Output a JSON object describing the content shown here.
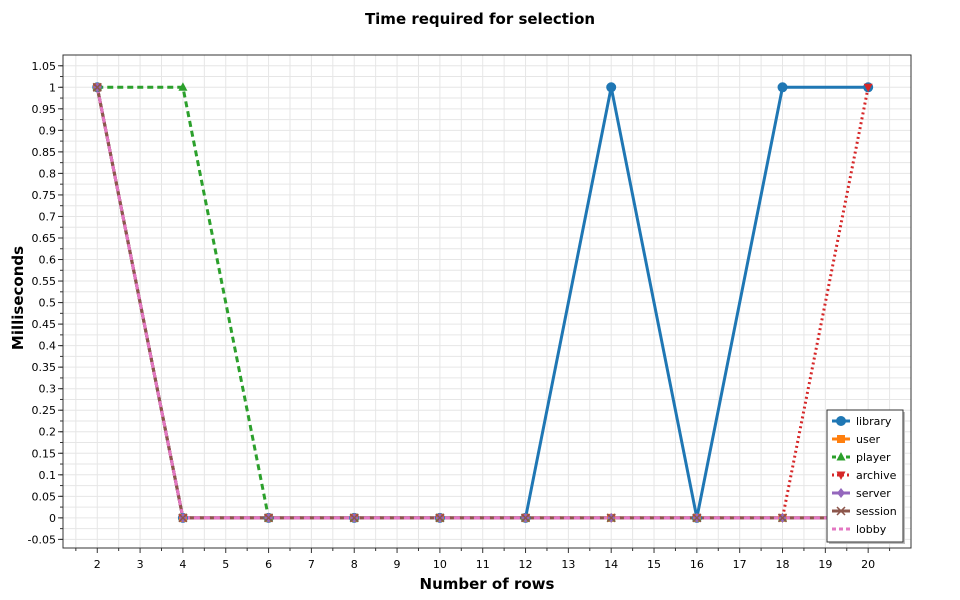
{
  "chart_data": {
    "type": "line",
    "title": "Time required for selection",
    "xlabel": "Number of rows",
    "ylabel": "Milliseconds",
    "xlim": [
      1.2,
      21
    ],
    "ylim": [
      -0.07,
      1.075
    ],
    "x_ticks": [
      2,
      3,
      4,
      5,
      6,
      7,
      8,
      9,
      10,
      11,
      12,
      13,
      14,
      15,
      16,
      17,
      18,
      19,
      20
    ],
    "y_ticks": [
      -0.05,
      0,
      0.05,
      0.1,
      0.15,
      0.2,
      0.25,
      0.3,
      0.35,
      0.4,
      0.45,
      0.5,
      0.55,
      0.6,
      0.65,
      0.7,
      0.75,
      0.8,
      0.85,
      0.9,
      0.95,
      1,
      1.05
    ],
    "grid": true,
    "legend_position": "bottom-right",
    "x": [
      2,
      4,
      6,
      8,
      10,
      12,
      14,
      16,
      18,
      20
    ],
    "series": [
      {
        "name": "library",
        "values": [
          1,
          0,
          0,
          0,
          0,
          0,
          1,
          0,
          1,
          1
        ],
        "color": "#1f77b4",
        "dash": "solid",
        "marker": "circle"
      },
      {
        "name": "user",
        "values": [
          1,
          0,
          0,
          0,
          0,
          0,
          0,
          0,
          0,
          0
        ],
        "color": "#ff7f0e",
        "dash": "solid",
        "marker": "square"
      },
      {
        "name": "player",
        "values": [
          1,
          1,
          0,
          0,
          0,
          0,
          0,
          0,
          0,
          0
        ],
        "color": "#2ca02c",
        "dash": "dashed",
        "marker": "triangle-up"
      },
      {
        "name": "archive",
        "values": [
          1,
          0,
          0,
          0,
          0,
          0,
          0,
          0,
          0,
          1
        ],
        "color": "#d62728",
        "dash": "dotted",
        "marker": "triangle-down"
      },
      {
        "name": "server",
        "values": [
          1,
          0,
          0,
          0,
          0,
          0,
          0,
          0,
          0,
          0
        ],
        "color": "#9467bd",
        "dash": "solid",
        "marker": "diamond"
      },
      {
        "name": "session",
        "values": [
          1,
          0,
          0,
          0,
          0,
          0,
          0,
          0,
          0,
          0
        ],
        "color": "#8c564b",
        "dash": "solid",
        "marker": "x"
      },
      {
        "name": "lobby",
        "values": [
          1,
          0,
          0,
          0,
          0,
          0,
          0,
          0,
          0,
          0
        ],
        "color": "#e377c2",
        "dash": "dashed",
        "marker": "none"
      }
    ]
  }
}
